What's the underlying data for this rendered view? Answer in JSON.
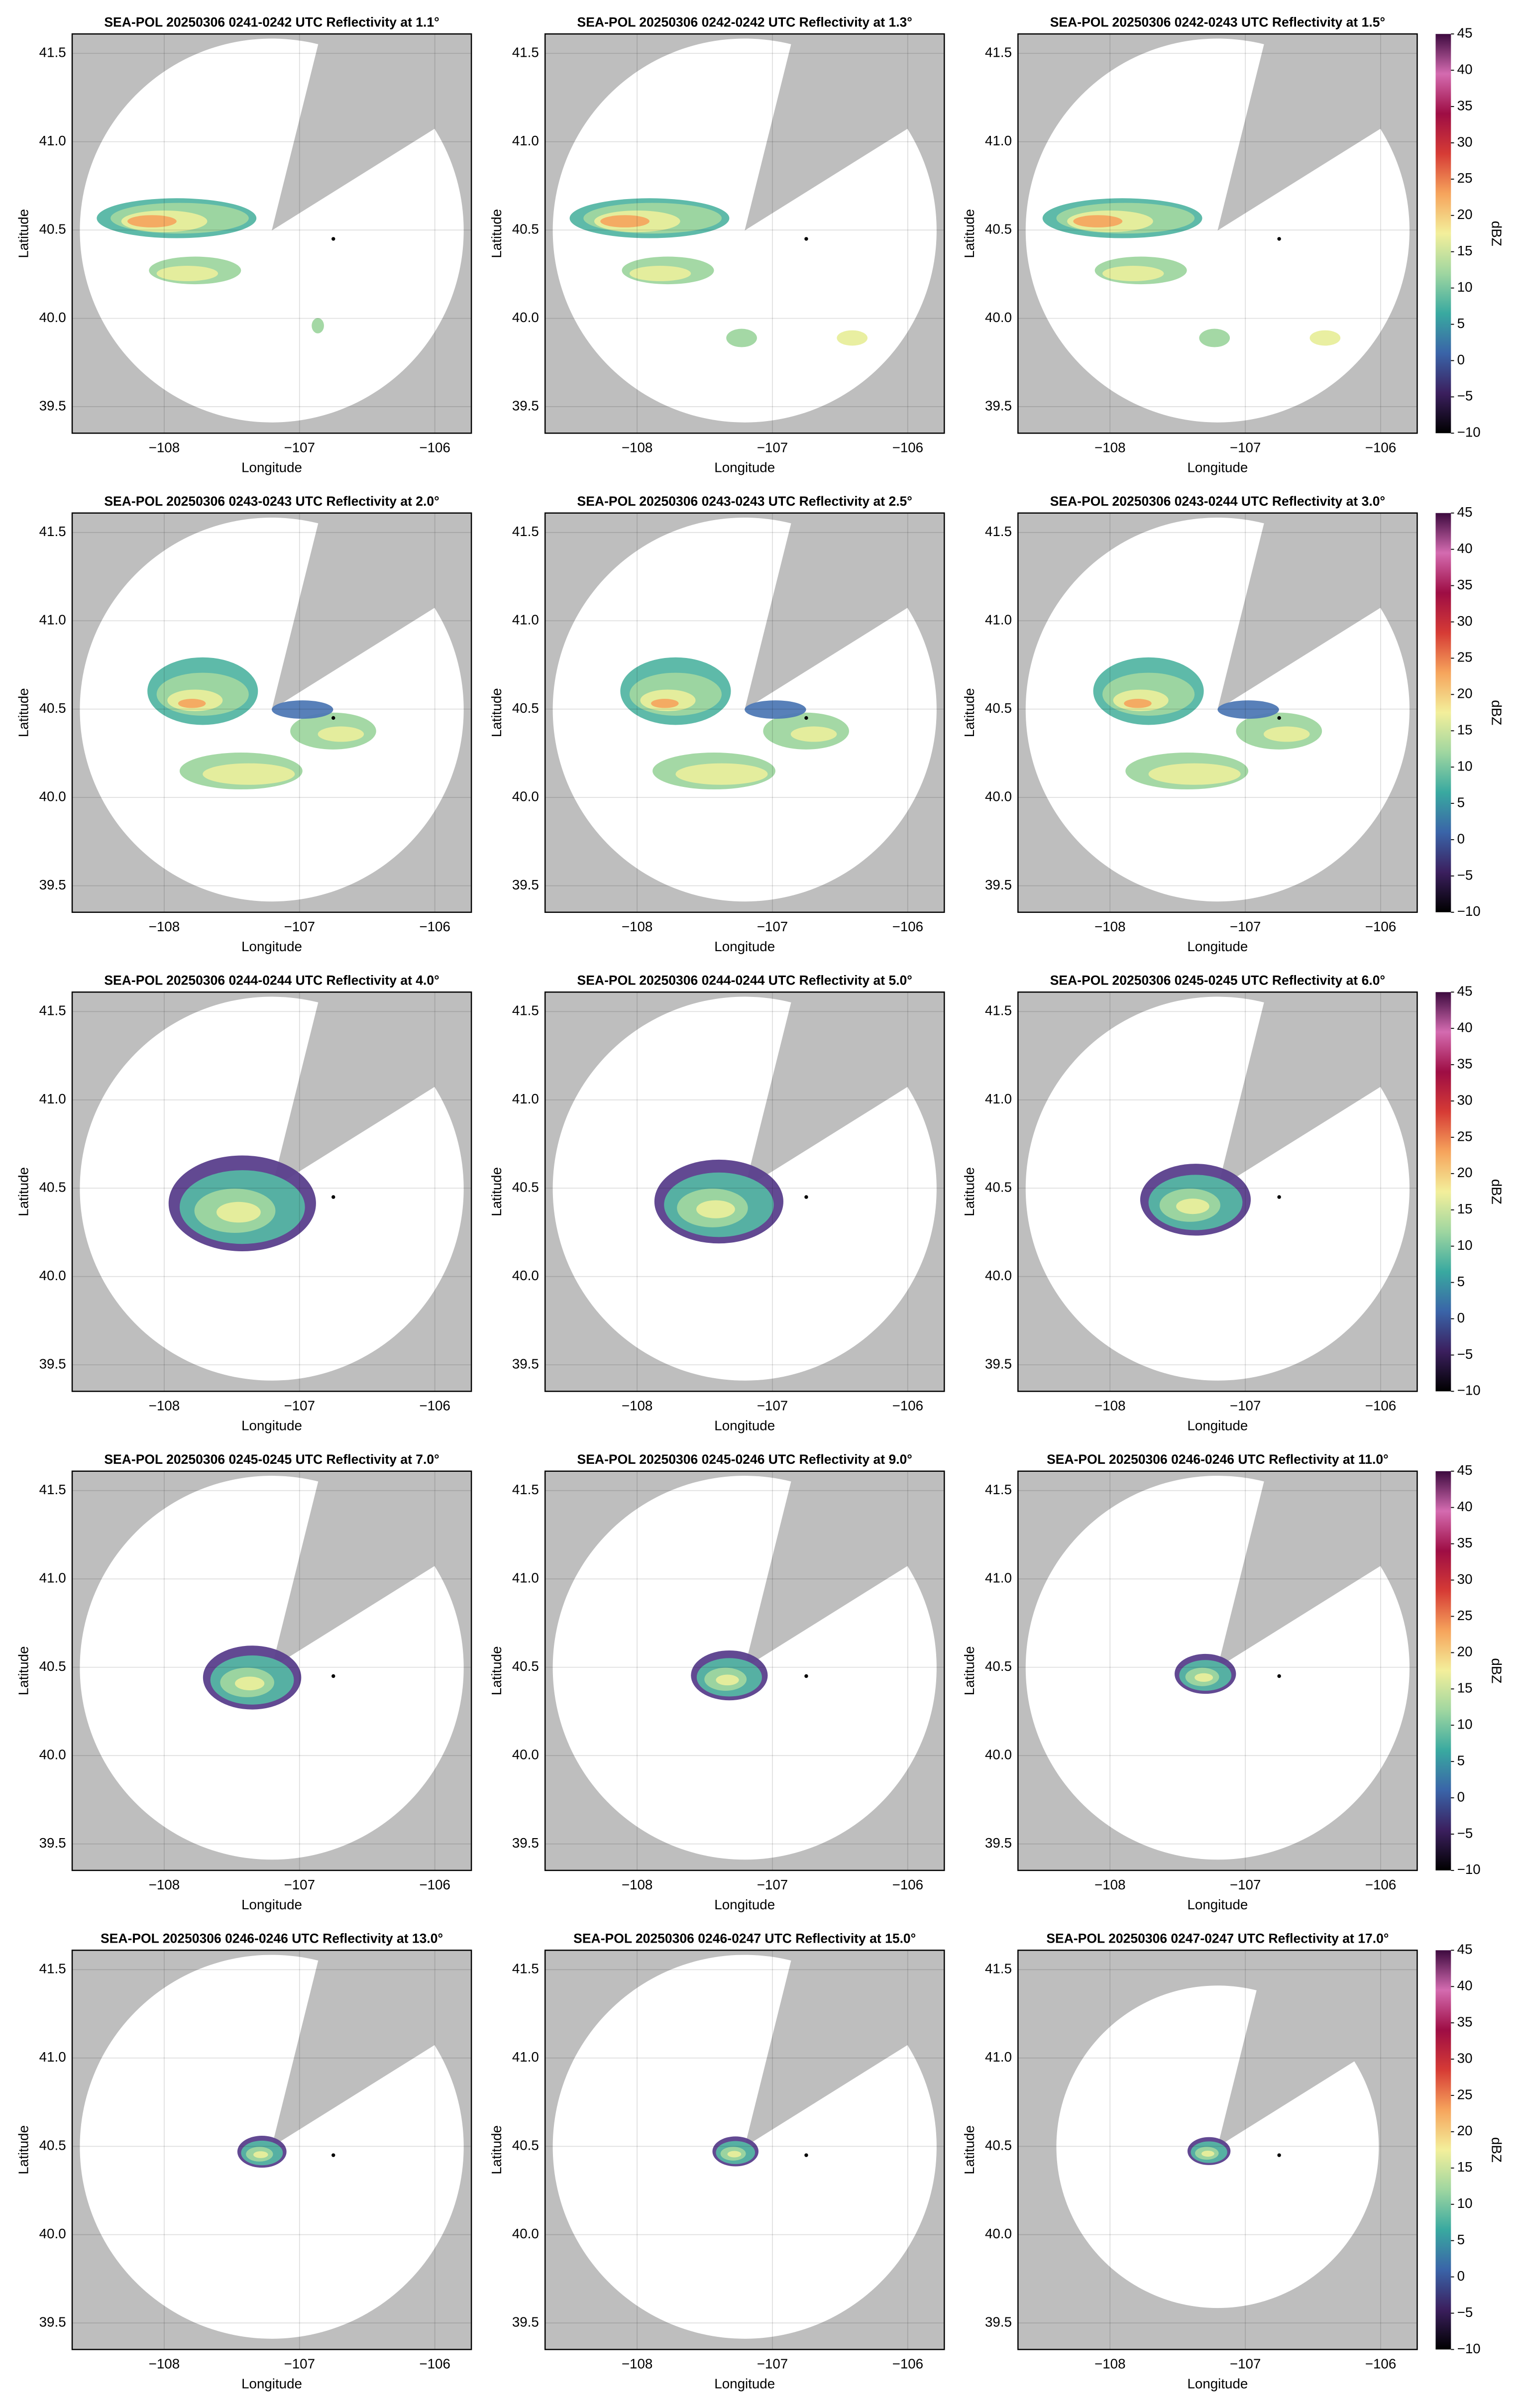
{
  "charts": [
    {
      "type": "radar-ppi",
      "title": "SEA-POL 20250306 0241-0242 UTC Reflectivity at 1.1°",
      "xlabel": "Longitude",
      "ylabel": "Latitude",
      "xlim": [
        -108.68,
        -105.73
      ],
      "ylim": [
        39.35,
        41.61
      ],
      "xticks": [
        {
          "value": -108,
          "label": "−108"
        },
        {
          "value": -107,
          "label": "−107"
        },
        {
          "value": -106,
          "label": "−106"
        }
      ],
      "yticks": [
        39.5,
        {
          "value": 40,
          "label": "40.0"
        },
        40.5,
        {
          "value": 41,
          "label": "41.0"
        },
        41.5
      ],
      "grid": true,
      "site": [
        -106.75,
        40.45
      ]
    },
    {
      "type": "radar-ppi",
      "title": "SEA-POL 20250306 0242-0242 UTC Reflectivity at 1.3°",
      "xlabel": "Longitude",
      "ylabel": "Latitude",
      "xlim": [
        -108.68,
        -105.73
      ],
      "ylim": [
        39.35,
        41.61
      ],
      "xticks": [
        {
          "value": -108,
          "label": "−108"
        },
        {
          "value": -107,
          "label": "−107"
        },
        {
          "value": -106,
          "label": "−106"
        }
      ],
      "yticks": [
        39.5,
        {
          "value": 40,
          "label": "40.0"
        },
        40.5,
        {
          "value": 41,
          "label": "41.0"
        },
        41.5
      ],
      "grid": true,
      "site": [
        -106.75,
        40.45
      ]
    },
    {
      "type": "radar-ppi",
      "title": "SEA-POL 20250306 0242-0243 UTC Reflectivity at 1.5°",
      "xlabel": "Longitude",
      "ylabel": "Latitude",
      "xlim": [
        -108.68,
        -105.73
      ],
      "ylim": [
        39.35,
        41.61
      ],
      "xticks": [
        {
          "value": -108,
          "label": "−108"
        },
        {
          "value": -107,
          "label": "−107"
        },
        {
          "value": -106,
          "label": "−106"
        }
      ],
      "yticks": [
        39.5,
        {
          "value": 40,
          "label": "40.0"
        },
        40.5,
        {
          "value": 41,
          "label": "41.0"
        },
        41.5
      ],
      "grid": true,
      "site": [
        -106.75,
        40.45
      ],
      "colorbar": {
        "label": "dBZ",
        "clim": [
          -10,
          45
        ],
        "ticks": [
          {
            "value": -10,
            "label": "−10"
          },
          {
            "value": -5,
            "label": "−5"
          },
          0,
          5,
          10,
          15,
          20,
          25,
          30,
          35,
          40,
          45
        ],
        "colormap": [
          "#000000",
          "#3b1f5e",
          "#3a64a8",
          "#39a9a0",
          "#9fd6a0",
          "#f3ef9b",
          "#f6a45c",
          "#d63b35",
          "#9e0d44",
          "#d46bb0",
          "#3d0a3f"
        ]
      }
    },
    {
      "type": "radar-ppi",
      "title": "SEA-POL 20250306 0243-0243 UTC Reflectivity at 2.0°",
      "xlabel": "Longitude",
      "ylabel": "Latitude",
      "xlim": [
        -108.68,
        -105.73
      ],
      "ylim": [
        39.35,
        41.61
      ],
      "xticks": [
        {
          "value": -108,
          "label": "−108"
        },
        {
          "value": -107,
          "label": "−107"
        },
        {
          "value": -106,
          "label": "−106"
        }
      ],
      "yticks": [
        39.5,
        {
          "value": 40,
          "label": "40.0"
        },
        40.5,
        {
          "value": 41,
          "label": "41.0"
        },
        41.5
      ],
      "grid": true,
      "site": [
        -106.75,
        40.45
      ]
    },
    {
      "type": "radar-ppi",
      "title": "SEA-POL 20250306 0243-0243 UTC Reflectivity at 2.5°",
      "xlabel": "Longitude",
      "ylabel": "Latitude",
      "xlim": [
        -108.68,
        -105.73
      ],
      "ylim": [
        39.35,
        41.61
      ],
      "xticks": [
        {
          "value": -108,
          "label": "−108"
        },
        {
          "value": -107,
          "label": "−107"
        },
        {
          "value": -106,
          "label": "−106"
        }
      ],
      "yticks": [
        39.5,
        {
          "value": 40,
          "label": "40.0"
        },
        40.5,
        {
          "value": 41,
          "label": "41.0"
        },
        41.5
      ],
      "grid": true,
      "site": [
        -106.75,
        40.45
      ]
    },
    {
      "type": "radar-ppi",
      "title": "SEA-POL 20250306 0243-0244 UTC Reflectivity at 3.0°",
      "xlabel": "Longitude",
      "ylabel": "Latitude",
      "xlim": [
        -108.68,
        -105.73
      ],
      "ylim": [
        39.35,
        41.61
      ],
      "xticks": [
        {
          "value": -108,
          "label": "−108"
        },
        {
          "value": -107,
          "label": "−107"
        },
        {
          "value": -106,
          "label": "−106"
        }
      ],
      "yticks": [
        39.5,
        {
          "value": 40,
          "label": "40.0"
        },
        40.5,
        {
          "value": 41,
          "label": "41.0"
        },
        41.5
      ],
      "grid": true,
      "site": [
        -106.75,
        40.45
      ],
      "colorbar": {
        "label": "dBZ",
        "clim": [
          -10,
          45
        ],
        "ticks": [
          {
            "value": -10,
            "label": "−10"
          },
          {
            "value": -5,
            "label": "−5"
          },
          0,
          5,
          10,
          15,
          20,
          25,
          30,
          35,
          40,
          45
        ],
        "colormap": [
          "#000000",
          "#3b1f5e",
          "#3a64a8",
          "#39a9a0",
          "#9fd6a0",
          "#f3ef9b",
          "#f6a45c",
          "#d63b35",
          "#9e0d44",
          "#d46bb0",
          "#3d0a3f"
        ]
      }
    },
    {
      "type": "radar-ppi",
      "title": "SEA-POL 20250306 0244-0244 UTC Reflectivity at 4.0°",
      "xlabel": "Longitude",
      "ylabel": "Latitude",
      "xlim": [
        -108.68,
        -105.73
      ],
      "ylim": [
        39.35,
        41.61
      ],
      "xticks": [
        {
          "value": -108,
          "label": "−108"
        },
        {
          "value": -107,
          "label": "−107"
        },
        {
          "value": -106,
          "label": "−106"
        }
      ],
      "yticks": [
        39.5,
        {
          "value": 40,
          "label": "40.0"
        },
        40.5,
        {
          "value": 41,
          "label": "41.0"
        },
        41.5
      ],
      "grid": true,
      "site": [
        -106.75,
        40.45
      ]
    },
    {
      "type": "radar-ppi",
      "title": "SEA-POL 20250306 0244-0244 UTC Reflectivity at 5.0°",
      "xlabel": "Longitude",
      "ylabel": "Latitude",
      "xlim": [
        -108.68,
        -105.73
      ],
      "ylim": [
        39.35,
        41.61
      ],
      "xticks": [
        {
          "value": -108,
          "label": "−108"
        },
        {
          "value": -107,
          "label": "−107"
        },
        {
          "value": -106,
          "label": "−106"
        }
      ],
      "yticks": [
        39.5,
        {
          "value": 40,
          "label": "40.0"
        },
        40.5,
        {
          "value": 41,
          "label": "41.0"
        },
        41.5
      ],
      "grid": true,
      "site": [
        -106.75,
        40.45
      ]
    },
    {
      "type": "radar-ppi",
      "title": "SEA-POL 20250306 0245-0245 UTC Reflectivity at 6.0°",
      "xlabel": "Longitude",
      "ylabel": "Latitude",
      "xlim": [
        -108.68,
        -105.73
      ],
      "ylim": [
        39.35,
        41.61
      ],
      "xticks": [
        {
          "value": -108,
          "label": "−108"
        },
        {
          "value": -107,
          "label": "−107"
        },
        {
          "value": -106,
          "label": "−106"
        }
      ],
      "yticks": [
        39.5,
        {
          "value": 40,
          "label": "40.0"
        },
        40.5,
        {
          "value": 41,
          "label": "41.0"
        },
        41.5
      ],
      "grid": true,
      "site": [
        -106.75,
        40.45
      ],
      "colorbar": {
        "label": "dBZ",
        "clim": [
          -10,
          45
        ],
        "ticks": [
          {
            "value": -10,
            "label": "−10"
          },
          {
            "value": -5,
            "label": "−5"
          },
          0,
          5,
          10,
          15,
          20,
          25,
          30,
          35,
          40,
          45
        ],
        "colormap": [
          "#000000",
          "#3b1f5e",
          "#3a64a8",
          "#39a9a0",
          "#9fd6a0",
          "#f3ef9b",
          "#f6a45c",
          "#d63b35",
          "#9e0d44",
          "#d46bb0",
          "#3d0a3f"
        ]
      }
    },
    {
      "type": "radar-ppi",
      "title": "SEA-POL 20250306 0245-0245 UTC Reflectivity at 7.0°",
      "xlabel": "Longitude",
      "ylabel": "Latitude",
      "xlim": [
        -108.68,
        -105.73
      ],
      "ylim": [
        39.35,
        41.61
      ],
      "xticks": [
        {
          "value": -108,
          "label": "−108"
        },
        {
          "value": -107,
          "label": "−107"
        },
        {
          "value": -106,
          "label": "−106"
        }
      ],
      "yticks": [
        39.5,
        {
          "value": 40,
          "label": "40.0"
        },
        40.5,
        {
          "value": 41,
          "label": "41.0"
        },
        41.5
      ],
      "grid": true,
      "site": [
        -106.75,
        40.45
      ]
    },
    {
      "type": "radar-ppi",
      "title": "SEA-POL 20250306 0245-0246 UTC Reflectivity at 9.0°",
      "xlabel": "Longitude",
      "ylabel": "Latitude",
      "xlim": [
        -108.68,
        -105.73
      ],
      "ylim": [
        39.35,
        41.61
      ],
      "xticks": [
        {
          "value": -108,
          "label": "−108"
        },
        {
          "value": -107,
          "label": "−107"
        },
        {
          "value": -106,
          "label": "−106"
        }
      ],
      "yticks": [
        39.5,
        {
          "value": 40,
          "label": "40.0"
        },
        40.5,
        {
          "value": 41,
          "label": "41.0"
        },
        41.5
      ],
      "grid": true,
      "site": [
        -106.75,
        40.45
      ]
    },
    {
      "type": "radar-ppi",
      "title": "SEA-POL 20250306 0246-0246 UTC Reflectivity at 11.0°",
      "xlabel": "Longitude",
      "ylabel": "Latitude",
      "xlim": [
        -108.68,
        -105.73
      ],
      "ylim": [
        39.35,
        41.61
      ],
      "xticks": [
        {
          "value": -108,
          "label": "−108"
        },
        {
          "value": -107,
          "label": "−107"
        },
        {
          "value": -106,
          "label": "−106"
        }
      ],
      "yticks": [
        39.5,
        {
          "value": 40,
          "label": "40.0"
        },
        40.5,
        {
          "value": 41,
          "label": "41.0"
        },
        41.5
      ],
      "grid": true,
      "site": [
        -106.75,
        40.45
      ],
      "colorbar": {
        "label": "dBZ",
        "clim": [
          -10,
          45
        ],
        "ticks": [
          {
            "value": -10,
            "label": "−10"
          },
          {
            "value": -5,
            "label": "−5"
          },
          0,
          5,
          10,
          15,
          20,
          25,
          30,
          35,
          40,
          45
        ],
        "colormap": [
          "#000000",
          "#3b1f5e",
          "#3a64a8",
          "#39a9a0",
          "#9fd6a0",
          "#f3ef9b",
          "#f6a45c",
          "#d63b35",
          "#9e0d44",
          "#d46bb0",
          "#3d0a3f"
        ]
      }
    },
    {
      "type": "radar-ppi",
      "title": "SEA-POL 20250306 0246-0246 UTC Reflectivity at 13.0°",
      "xlabel": "Longitude",
      "ylabel": "Latitude",
      "xlim": [
        -108.68,
        -105.73
      ],
      "ylim": [
        39.35,
        41.61
      ],
      "xticks": [
        {
          "value": -108,
          "label": "−108"
        },
        {
          "value": -107,
          "label": "−107"
        },
        {
          "value": -106,
          "label": "−106"
        }
      ],
      "yticks": [
        39.5,
        {
          "value": 40,
          "label": "40.0"
        },
        40.5,
        {
          "value": 41,
          "label": "41.0"
        },
        41.5
      ],
      "grid": true,
      "site": [
        -106.75,
        40.45
      ]
    },
    {
      "type": "radar-ppi",
      "title": "SEA-POL 20250306 0246-0247 UTC Reflectivity at 15.0°",
      "xlabel": "Longitude",
      "ylabel": "Latitude",
      "xlim": [
        -108.68,
        -105.73
      ],
      "ylim": [
        39.35,
        41.61
      ],
      "xticks": [
        {
          "value": -108,
          "label": "−108"
        },
        {
          "value": -107,
          "label": "−107"
        },
        {
          "value": -106,
          "label": "−106"
        }
      ],
      "yticks": [
        39.5,
        {
          "value": 40,
          "label": "40.0"
        },
        40.5,
        {
          "value": 41,
          "label": "41.0"
        },
        41.5
      ],
      "grid": true,
      "site": [
        -106.75,
        40.45
      ]
    },
    {
      "type": "radar-ppi",
      "title": "SEA-POL 20250306 0247-0247 UTC Reflectivity at 17.0°",
      "xlabel": "Longitude",
      "ylabel": "Latitude",
      "xlim": [
        -108.68,
        -105.73
      ],
      "ylim": [
        39.35,
        41.61
      ],
      "xticks": [
        {
          "value": -108,
          "label": "−108"
        },
        {
          "value": -107,
          "label": "−107"
        },
        {
          "value": -106,
          "label": "−106"
        }
      ],
      "yticks": [
        39.5,
        {
          "value": 40,
          "label": "40.0"
        },
        40.5,
        {
          "value": 41,
          "label": "41.0"
        },
        41.5
      ],
      "grid": true,
      "site": [
        -106.75,
        40.45
      ],
      "colorbar": {
        "label": "dBZ",
        "clim": [
          -10,
          45
        ],
        "ticks": [
          {
            "value": -10,
            "label": "−10"
          },
          {
            "value": -5,
            "label": "−5"
          },
          0,
          5,
          10,
          15,
          20,
          25,
          30,
          35,
          40,
          45
        ],
        "colormap": [
          "#000000",
          "#3b1f5e",
          "#3a64a8",
          "#39a9a0",
          "#9fd6a0",
          "#f3ef9b",
          "#f6a45c",
          "#d63b35",
          "#9e0d44",
          "#d46bb0",
          "#3d0a3f"
        ]
      }
    }
  ]
}
